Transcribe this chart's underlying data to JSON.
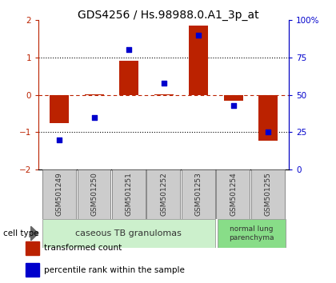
{
  "title": "GDS4256 / Hs.98988.0.A1_3p_at",
  "samples": [
    "GSM501249",
    "GSM501250",
    "GSM501251",
    "GSM501252",
    "GSM501253",
    "GSM501254",
    "GSM501255"
  ],
  "red_bars": [
    -0.75,
    0.02,
    0.9,
    0.02,
    1.85,
    -0.15,
    -1.22
  ],
  "blue_dots": [
    20,
    35,
    80,
    58,
    90,
    43,
    25
  ],
  "ylim_left": [
    -2,
    2
  ],
  "ylim_right": [
    0,
    100
  ],
  "yticks_left": [
    -2,
    -1,
    0,
    1,
    2
  ],
  "yticks_right": [
    0,
    25,
    50,
    75,
    100
  ],
  "ytick_labels_right": [
    "0",
    "25",
    "50",
    "75",
    "100%"
  ],
  "cell_type_groups": [
    {
      "label": "caseous TB granulomas",
      "n_samples": 5,
      "color": "#ccf0cc"
    },
    {
      "label": "normal lung\nparenchyma",
      "n_samples": 2,
      "color": "#88dd88"
    }
  ],
  "bar_color": "#bb2200",
  "dot_color": "#0000cc",
  "bar_width": 0.55,
  "legend_items": [
    {
      "color": "#bb2200",
      "label": "transformed count"
    },
    {
      "color": "#0000cc",
      "label": "percentile rank within the sample"
    }
  ],
  "bg_color": "#ffffff",
  "tick_box_color": "#cccccc",
  "title_fontsize": 10,
  "axis_fontsize": 7.5,
  "legend_fontsize": 7.5,
  "sample_label_fontsize": 6.5
}
